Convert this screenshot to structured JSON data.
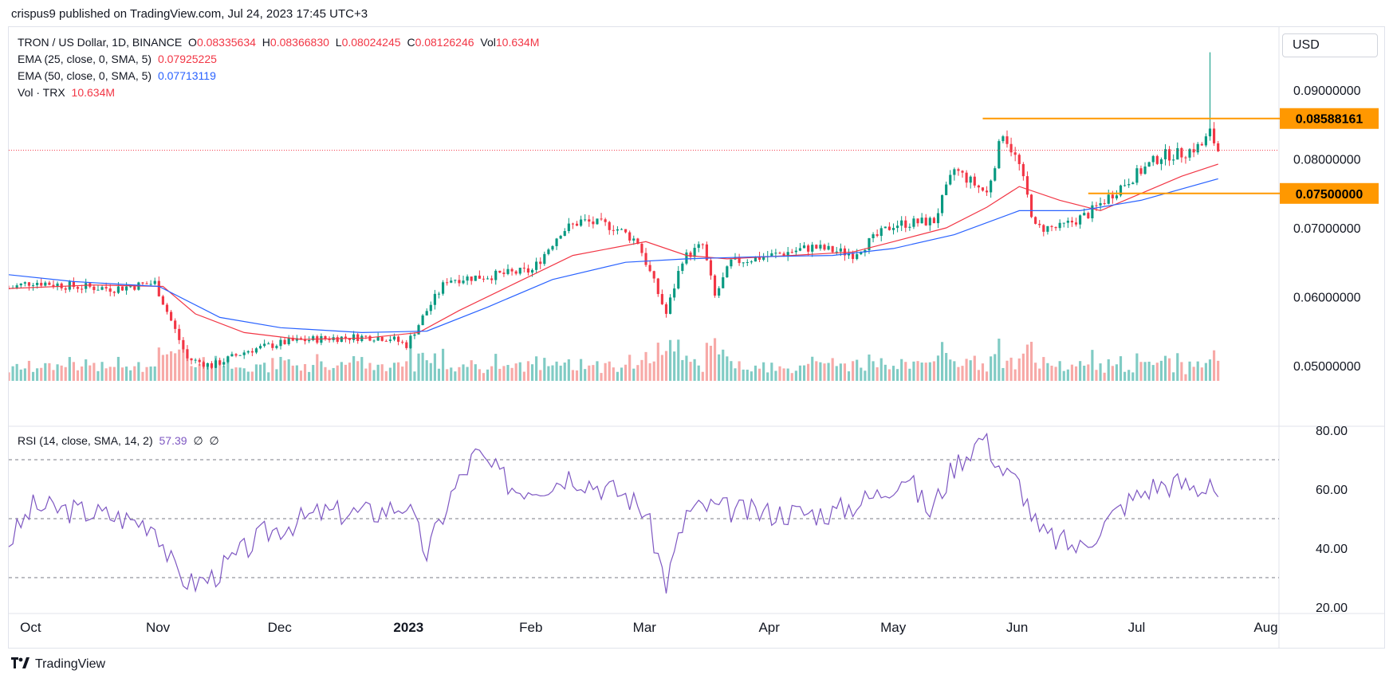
{
  "header": {
    "published": "crispus9 published on TradingView.com, Jul 24, 2023 17:45 UTC+3"
  },
  "legend": {
    "symbol": "TRON / US Dollar, 1D, BINANCE",
    "open_label": "O",
    "open": "0.08335634",
    "high_label": "H",
    "high": "0.08366830",
    "low_label": "L",
    "low": "0.08024245",
    "close_label": "C",
    "close": "0.08126246",
    "vol_label": "Vol",
    "vol": "10.634M",
    "ema25_label": "EMA (25, close, 0, SMA, 5)",
    "ema25_value": "0.07925225",
    "ema50_label": "EMA (50, close, 0, SMA, 5)",
    "ema50_value": "0.07713119",
    "volume_label": "Vol · TRX",
    "volume_value": "10.634M",
    "rsi_label": "RSI (14, close, SMA, 14, 2)",
    "rsi_value": "57.39",
    "rsi_extra1": "∅",
    "rsi_extra2": "∅"
  },
  "currency_button": "USD",
  "footer": {
    "brand": "TradingView",
    "logo_icon": "tradingview-logo-icon"
  },
  "colors": {
    "up": "#089981",
    "down": "#f23645",
    "ema25": "#f23645",
    "ema50": "#2962ff",
    "rsi": "#7e57c2",
    "level": "#ff9800"
  },
  "chart_data": [
    {
      "type": "candlestick",
      "ylim": [
        0.042,
        0.098
      ],
      "y_ticks": [
        0.05,
        0.06,
        0.07,
        0.08,
        0.09
      ],
      "y_tick_labels": [
        "0.05000000",
        "0.06000000",
        "0.07000000",
        "0.08000000",
        "0.09000000"
      ],
      "x_tick_labels": [
        "Oct",
        "Nov",
        "Dec",
        "2023",
        "Feb",
        "Mar",
        "Apr",
        "May",
        "Jun",
        "Jul",
        "Aug"
      ],
      "x_tick_dates": [
        "2022-10-01",
        "2022-11-01",
        "2022-12-01",
        "2023-01-01",
        "2023-02-01",
        "2023-03-01",
        "2023-04-01",
        "2023-05-01",
        "2023-06-01",
        "2023-07-01",
        "2023-08-01"
      ],
      "x_range": [
        "2022-09-29",
        "2023-08-08"
      ],
      "horizontal_levels": [
        {
          "value": 0.08588161,
          "label": "0.08588161",
          "from": "2023-05-27"
        },
        {
          "value": 0.075,
          "label": "0.07500000",
          "from": "2023-06-22"
        }
      ],
      "last_price": 0.08126246,
      "close_path": [
        [
          "2022-09-29",
          0.0612
        ],
        [
          "2022-10-05",
          0.0622
        ],
        [
          "2022-10-15",
          0.0615
        ],
        [
          "2022-10-25",
          0.0612
        ],
        [
          "2022-11-04",
          0.062
        ],
        [
          "2022-11-08",
          0.0565
        ],
        [
          "2022-11-12",
          0.051
        ],
        [
          "2022-11-18",
          0.05
        ],
        [
          "2022-11-27",
          0.0522
        ],
        [
          "2022-12-07",
          0.0535
        ],
        [
          "2022-12-17",
          0.054
        ],
        [
          "2022-12-27",
          0.0542
        ],
        [
          "2023-01-01",
          0.054
        ],
        [
          "2023-01-05",
          0.053
        ],
        [
          "2023-01-10",
          0.058
        ],
        [
          "2023-01-15",
          0.0625
        ],
        [
          "2023-01-25",
          0.063
        ],
        [
          "2023-02-05",
          0.0638
        ],
        [
          "2023-02-12",
          0.0695
        ],
        [
          "2023-02-17",
          0.071
        ],
        [
          "2023-02-25",
          0.0702
        ],
        [
          "2023-03-03",
          0.068
        ],
        [
          "2023-03-10",
          0.0575
        ],
        [
          "2023-03-14",
          0.0655
        ],
        [
          "2023-03-19",
          0.0675
        ],
        [
          "2023-03-22",
          0.06
        ],
        [
          "2023-03-26",
          0.065
        ],
        [
          "2023-04-05",
          0.066
        ],
        [
          "2023-04-15",
          0.0672
        ],
        [
          "2023-04-25",
          0.0662
        ],
        [
          "2023-05-05",
          0.0705
        ],
        [
          "2023-05-15",
          0.071
        ],
        [
          "2023-05-20",
          0.0785
        ],
        [
          "2023-05-28",
          0.075
        ],
        [
          "2023-06-01",
          0.084
        ],
        [
          "2023-06-05",
          0.079
        ],
        [
          "2023-06-09",
          0.07
        ],
        [
          "2023-06-15",
          0.07
        ],
        [
          "2023-06-22",
          0.072
        ],
        [
          "2023-07-01",
          0.0765
        ],
        [
          "2023-07-10",
          0.0805
        ],
        [
          "2023-07-15",
          0.0808
        ],
        [
          "2023-07-20",
          0.082
        ],
        [
          "2023-07-22",
          0.0838
        ],
        [
          "2023-07-24",
          0.08126246
        ]
      ]
    },
    {
      "type": "line",
      "title": "RSI (14, close, SMA, 14, 2)",
      "ylim": [
        20,
        80
      ],
      "y_ticks": [
        20,
        40,
        60,
        80
      ],
      "y_tick_labels": [
        "20.00",
        "40.00",
        "60.00",
        "80.00"
      ],
      "bands": [
        30,
        50,
        70
      ],
      "x": [
        "2022-09-29",
        "2022-10-05",
        "2022-10-20",
        "2022-11-04",
        "2022-11-09",
        "2022-11-13",
        "2022-11-18",
        "2022-12-01",
        "2022-12-15",
        "2022-12-28",
        "2023-01-05",
        "2023-01-10",
        "2023-01-16",
        "2023-01-22",
        "2023-02-01",
        "2023-02-10",
        "2023-02-14",
        "2023-02-28",
        "2023-03-05",
        "2023-03-10",
        "2023-03-15",
        "2023-03-20",
        "2023-04-01",
        "2023-04-20",
        "2023-05-01",
        "2023-05-08",
        "2023-05-14",
        "2023-05-20",
        "2023-05-27",
        "2023-06-01",
        "2023-06-05",
        "2023-06-10",
        "2023-06-20",
        "2023-07-01",
        "2023-07-08",
        "2023-07-14",
        "2023-07-20",
        "2023-07-22",
        "2023-07-24"
      ],
      "values": [
        42,
        54,
        52,
        48,
        32,
        28,
        30,
        45,
        52,
        52,
        55,
        38,
        58,
        72,
        60,
        62,
        65,
        58,
        52,
        28,
        52,
        54,
        52,
        52,
        58,
        65,
        52,
        68,
        78,
        66,
        62,
        45,
        40,
        55,
        61,
        62,
        60,
        64,
        57.39
      ]
    },
    {
      "type": "line",
      "name": "EMA (25, close, 0, SMA, 5)",
      "x": [
        "2022-09-29",
        "2022-10-20",
        "2022-11-06",
        "2022-11-14",
        "2022-11-26",
        "2022-12-10",
        "2022-12-26",
        "2023-01-08",
        "2023-01-18",
        "2023-02-01",
        "2023-02-15",
        "2023-03-05",
        "2023-03-15",
        "2023-03-25",
        "2023-04-10",
        "2023-04-25",
        "2023-05-05",
        "2023-05-18",
        "2023-05-28",
        "2023-06-05",
        "2023-06-15",
        "2023-06-25",
        "2023-07-05",
        "2023-07-15",
        "2023-07-24"
      ],
      "values": [
        0.0612,
        0.0617,
        0.0615,
        0.0575,
        0.0548,
        0.0538,
        0.054,
        0.0548,
        0.058,
        0.062,
        0.066,
        0.068,
        0.066,
        0.0655,
        0.066,
        0.0665,
        0.068,
        0.07,
        0.073,
        0.076,
        0.074,
        0.0725,
        0.075,
        0.0775,
        0.07925225
      ]
    },
    {
      "type": "line",
      "name": "EMA (50, close, 0, SMA, 5)",
      "x": [
        "2022-09-29",
        "2022-10-15",
        "2022-11-05",
        "2022-11-20",
        "2022-12-05",
        "2022-12-25",
        "2023-01-10",
        "2023-01-25",
        "2023-02-10",
        "2023-02-28",
        "2023-03-15",
        "2023-04-01",
        "2023-04-20",
        "2023-05-05",
        "2023-05-20",
        "2023-06-05",
        "2023-06-20",
        "2023-07-05",
        "2023-07-24"
      ],
      "values": [
        0.0632,
        0.0622,
        0.0615,
        0.057,
        0.0555,
        0.0548,
        0.055,
        0.0585,
        0.0625,
        0.065,
        0.0655,
        0.0658,
        0.066,
        0.067,
        0.069,
        0.0725,
        0.0725,
        0.074,
        0.07713119
      ]
    }
  ]
}
